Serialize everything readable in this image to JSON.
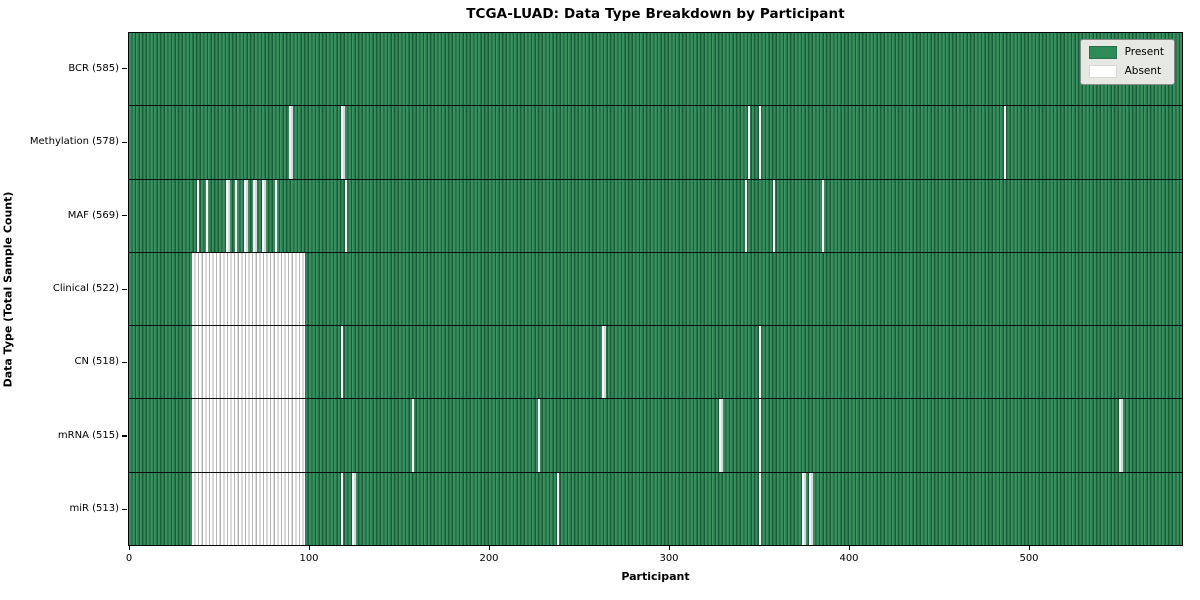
{
  "chart_data": {
    "type": "heatmap",
    "title": "TCGA-LUAD: Data Type Breakdown by Participant",
    "xlabel": "Participant",
    "ylabel": "Data Type (Total Sample Count)",
    "xlim": [
      0,
      585
    ],
    "x_ticks": [
      0,
      100,
      200,
      300,
      400,
      500
    ],
    "grid": false,
    "colors": {
      "present": "#2e8b57",
      "present_stripe": "#1d5c39",
      "absent": "#ffffff",
      "absent_stripe": "#b3b3b3",
      "legend_background": "#e6e9e3"
    },
    "legend": {
      "position": "upper right",
      "entries": [
        {
          "label": "Present",
          "color": "#2e8b57"
        },
        {
          "label": "Absent",
          "color": "#ffffff"
        }
      ]
    },
    "rows": [
      {
        "label": "BCR (585)",
        "data_type": "BCR",
        "total_samples": 585,
        "absent_ranges": []
      },
      {
        "label": "Methylation (578)",
        "data_type": "Methylation",
        "total_samples": 578,
        "absent_ranges": [
          [
            89,
            2
          ],
          [
            118,
            2
          ],
          [
            344,
            1
          ],
          [
            350,
            1
          ],
          [
            486,
            1
          ]
        ]
      },
      {
        "label": "MAF (569)",
        "data_type": "MAF",
        "total_samples": 569,
        "absent_ranges": [
          [
            38,
            1
          ],
          [
            43,
            1
          ],
          [
            54,
            2
          ],
          [
            59,
            1
          ],
          [
            64,
            2
          ],
          [
            69,
            2
          ],
          [
            74,
            2
          ],
          [
            81,
            1
          ],
          [
            120,
            1
          ],
          [
            342,
            1
          ],
          [
            358,
            1
          ],
          [
            385,
            1
          ]
        ]
      },
      {
        "label": "Clinical (522)",
        "data_type": "Clinical",
        "total_samples": 522,
        "absent_ranges": [
          [
            35,
            63
          ]
        ]
      },
      {
        "label": "CN (518)",
        "data_type": "CN",
        "total_samples": 518,
        "absent_ranges": [
          [
            35,
            63
          ],
          [
            118,
            1
          ],
          [
            263,
            2
          ],
          [
            350,
            1
          ]
        ]
      },
      {
        "label": "mRNA (515)",
        "data_type": "mRNA",
        "total_samples": 515,
        "absent_ranges": [
          [
            35,
            63
          ],
          [
            157,
            1
          ],
          [
            227,
            1
          ],
          [
            328,
            2
          ],
          [
            350,
            1
          ],
          [
            550,
            2
          ]
        ]
      },
      {
        "label": "miR (513)",
        "data_type": "miR",
        "total_samples": 513,
        "absent_ranges": [
          [
            35,
            63
          ],
          [
            118,
            1
          ],
          [
            124,
            2
          ],
          [
            238,
            1
          ],
          [
            350,
            1
          ],
          [
            374,
            2
          ],
          [
            378,
            2
          ]
        ]
      }
    ]
  }
}
